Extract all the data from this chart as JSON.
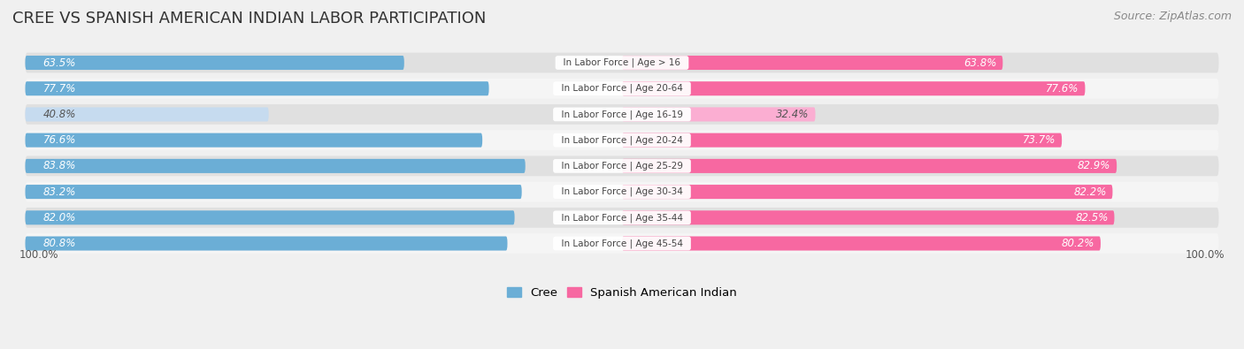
{
  "title": "CREE VS SPANISH AMERICAN INDIAN LABOR PARTICIPATION",
  "source": "Source: ZipAtlas.com",
  "categories": [
    "In Labor Force | Age > 16",
    "In Labor Force | Age 20-64",
    "In Labor Force | Age 16-19",
    "In Labor Force | Age 20-24",
    "In Labor Force | Age 25-29",
    "In Labor Force | Age 30-34",
    "In Labor Force | Age 35-44",
    "In Labor Force | Age 45-54"
  ],
  "cree_values": [
    63.5,
    77.7,
    40.8,
    76.6,
    83.8,
    83.2,
    82.0,
    80.8
  ],
  "spanish_values": [
    63.8,
    77.6,
    32.4,
    73.7,
    82.9,
    82.2,
    82.5,
    80.2
  ],
  "cree_color": "#6BAED6",
  "cree_color_light": "#C6DBEF",
  "spanish_color": "#F768A1",
  "spanish_color_light": "#FBAED2",
  "background_color": "#f0f0f0",
  "row_bg_dark": "#e0e0e0",
  "row_bg_light": "#f5f5f5",
  "max_value": 100.0,
  "legend_label_cree": "Cree",
  "legend_label_spanish": "Spanish American Indian",
  "title_fontsize": 13,
  "source_fontsize": 9,
  "label_fontsize": 8.5,
  "cat_fontsize": 7.5
}
